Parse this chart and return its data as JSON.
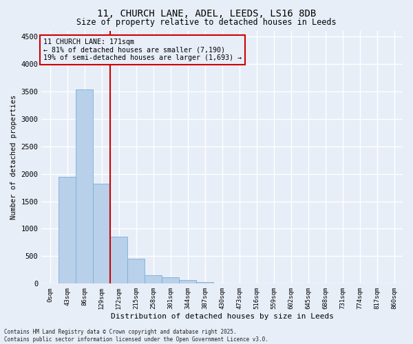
{
  "title_line1": "11, CHURCH LANE, ADEL, LEEDS, LS16 8DB",
  "title_line2": "Size of property relative to detached houses in Leeds",
  "xlabel": "Distribution of detached houses by size in Leeds",
  "ylabel": "Number of detached properties",
  "bar_labels": [
    "0sqm",
    "43sqm",
    "86sqm",
    "129sqm",
    "172sqm",
    "215sqm",
    "258sqm",
    "301sqm",
    "344sqm",
    "387sqm",
    "430sqm",
    "473sqm",
    "516sqm",
    "559sqm",
    "602sqm",
    "645sqm",
    "688sqm",
    "731sqm",
    "774sqm",
    "817sqm",
    "860sqm"
  ],
  "bar_values": [
    10,
    1950,
    3530,
    1820,
    860,
    450,
    155,
    120,
    70,
    30,
    5,
    2,
    1,
    0,
    0,
    0,
    0,
    0,
    0,
    0,
    0
  ],
  "bar_color": "#b8d0ea",
  "bar_edge_color": "#7aafd4",
  "vline_x_index": 4,
  "vline_color": "#cc0000",
  "ylim": [
    0,
    4600
  ],
  "yticks": [
    0,
    500,
    1000,
    1500,
    2000,
    2500,
    3000,
    3500,
    4000,
    4500
  ],
  "annotation_box_text": "11 CHURCH LANE: 171sqm\n← 81% of detached houses are smaller (7,190)\n19% of semi-detached houses are larger (1,693) →",
  "annotation_box_color": "#cc0000",
  "footnote": "Contains HM Land Registry data © Crown copyright and database right 2025.\nContains public sector information licensed under the Open Government Licence v3.0.",
  "background_color": "#e8eef8",
  "grid_color": "#ffffff",
  "figsize": [
    6.0,
    5.0
  ],
  "dpi": 100
}
